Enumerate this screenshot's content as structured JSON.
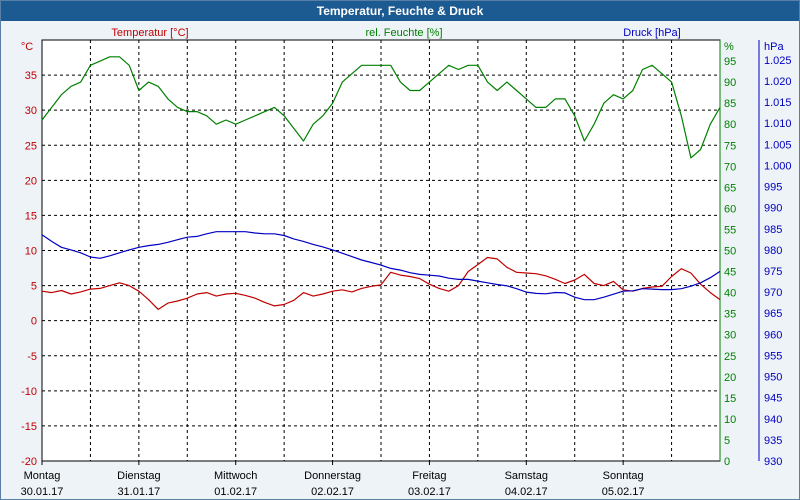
{
  "window": {
    "title": "Temperatur, Feuchte & Druck"
  },
  "chart_data": {
    "type": "line",
    "axes": {
      "temperature": {
        "label": "Temperatur [°C]",
        "unit": "°C",
        "ylim": [
          -20,
          40
        ],
        "ticks": [
          -20,
          -15,
          -10,
          -5,
          0,
          5,
          10,
          15,
          20,
          25,
          30,
          35
        ],
        "color": "#c00000"
      },
      "humidity": {
        "label": "rel. Feuchte [%]",
        "unit": "%",
        "ylim": [
          0,
          100
        ],
        "ticks": [
          0,
          5,
          10,
          15,
          20,
          25,
          30,
          35,
          40,
          45,
          50,
          55,
          60,
          65,
          70,
          75,
          80,
          85,
          90,
          95
        ],
        "color": "#008000"
      },
      "pressure": {
        "label": "Druck [hPa]",
        "unit": "hPa",
        "ylim": [
          930,
          1029.7
        ],
        "ticks": [
          "930",
          "935",
          "940",
          "945",
          "950",
          "955",
          "960",
          "965",
          "970",
          "975",
          "980",
          "985",
          "990",
          "995",
          "1.000",
          "1.005",
          "1.010",
          "1.015",
          "1.020",
          "1.025"
        ],
        "color": "#0000c0"
      }
    },
    "x_labels": [
      {
        "day": "Montag",
        "date": "30.01.17"
      },
      {
        "day": "Dienstag",
        "date": "31.01.17"
      },
      {
        "day": "Mittwoch",
        "date": "01.02.17"
      },
      {
        "day": "Donnerstag",
        "date": "02.02.17"
      },
      {
        "day": "Freitag",
        "date": "03.02.17"
      },
      {
        "day": "Samstag",
        "date": "04.02.17"
      },
      {
        "day": "Sonntag",
        "date": "05.02.17"
      }
    ],
    "x_range_days": [
      0,
      7
    ],
    "grid": true,
    "series": [
      {
        "name": "Temperatur [°C]",
        "axis": "temperature",
        "color": "#c00000",
        "x": [
          0,
          0.1,
          0.2,
          0.3,
          0.4,
          0.5,
          0.6,
          0.7,
          0.8,
          0.9,
          1.0,
          1.1,
          1.2,
          1.3,
          1.4,
          1.5,
          1.6,
          1.7,
          1.8,
          1.9,
          2.0,
          2.1,
          2.2,
          2.3,
          2.4,
          2.5,
          2.6,
          2.7,
          2.8,
          2.9,
          3.0,
          3.1,
          3.2,
          3.3,
          3.4,
          3.5,
          3.6,
          3.7,
          3.8,
          3.9,
          4.0,
          4.1,
          4.2,
          4.3,
          4.4,
          4.5,
          4.6,
          4.7,
          4.8,
          4.9,
          5.0,
          5.1,
          5.2,
          5.3,
          5.4,
          5.5,
          5.6,
          5.7,
          5.8,
          5.9,
          6.0,
          6.1,
          6.2,
          6.3,
          6.4,
          6.5,
          6.6,
          6.7,
          6.8,
          6.9,
          7.0
        ],
        "values": [
          4.2,
          4.0,
          4.3,
          3.8,
          4.1,
          4.5,
          4.6,
          5.0,
          5.4,
          5.0,
          4.2,
          3.0,
          1.6,
          2.5,
          2.8,
          3.2,
          3.8,
          4.0,
          3.5,
          3.8,
          3.9,
          3.6,
          3.2,
          2.6,
          2.1,
          2.3,
          2.9,
          4.0,
          3.5,
          3.8,
          4.2,
          4.4,
          4.1,
          4.6,
          4.9,
          5.1,
          6.9,
          6.5,
          6.3,
          6.0,
          5.2,
          4.6,
          4.2,
          5.0,
          7.0,
          8.0,
          9.0,
          8.8,
          7.6,
          6.9,
          6.8,
          6.7,
          6.4,
          5.9,
          5.3,
          5.8,
          6.6,
          5.3,
          5.0,
          5.6,
          4.4,
          4.2,
          4.6,
          4.8,
          4.9,
          6.3,
          7.4,
          6.8,
          5.2,
          4.0,
          3.0
        ]
      },
      {
        "name": "rel. Feuchte [%]",
        "axis": "humidity",
        "color": "#008000",
        "x": [
          0,
          0.1,
          0.2,
          0.3,
          0.4,
          0.5,
          0.6,
          0.7,
          0.8,
          0.9,
          1.0,
          1.1,
          1.2,
          1.3,
          1.4,
          1.5,
          1.6,
          1.7,
          1.8,
          1.9,
          2.0,
          2.1,
          2.2,
          2.3,
          2.4,
          2.5,
          2.6,
          2.7,
          2.8,
          2.9,
          3.0,
          3.1,
          3.2,
          3.3,
          3.4,
          3.5,
          3.6,
          3.7,
          3.8,
          3.9,
          4.0,
          4.1,
          4.2,
          4.3,
          4.4,
          4.5,
          4.6,
          4.7,
          4.8,
          4.9,
          5.0,
          5.1,
          5.2,
          5.3,
          5.4,
          5.5,
          5.6,
          5.7,
          5.8,
          5.9,
          6.0,
          6.1,
          6.2,
          6.3,
          6.4,
          6.5,
          6.6,
          6.7,
          6.8,
          6.9,
          7.0
        ],
        "values": [
          81,
          84,
          87,
          89,
          90,
          94,
          95,
          96,
          96,
          94,
          88,
          90,
          89,
          86,
          84,
          83,
          83,
          82,
          80,
          81,
          80,
          81,
          82,
          83,
          84,
          82,
          79,
          76,
          80,
          82,
          85,
          90,
          92,
          94,
          94,
          94,
          94,
          90,
          88,
          88,
          90,
          92,
          94,
          93,
          94,
          94,
          90,
          88,
          90,
          88,
          86,
          84,
          84,
          86,
          86,
          82,
          76,
          80,
          85,
          87,
          86,
          88,
          93,
          94,
          92,
          90,
          82,
          72,
          74,
          80,
          84
        ]
      },
      {
        "name": "Druck [hPa]",
        "axis": "pressure",
        "color": "#0000c0",
        "x": [
          0,
          0.1,
          0.2,
          0.3,
          0.4,
          0.5,
          0.6,
          0.7,
          0.8,
          0.9,
          1.0,
          1.1,
          1.2,
          1.3,
          1.4,
          1.5,
          1.6,
          1.7,
          1.8,
          1.9,
          2.0,
          2.1,
          2.2,
          2.3,
          2.4,
          2.5,
          2.6,
          2.7,
          2.8,
          2.9,
          3.0,
          3.1,
          3.2,
          3.3,
          3.4,
          3.5,
          3.6,
          3.7,
          3.8,
          3.9,
          4.0,
          4.1,
          4.2,
          4.3,
          4.4,
          4.5,
          4.6,
          4.7,
          4.8,
          4.9,
          5.0,
          5.1,
          5.2,
          5.3,
          5.4,
          5.5,
          5.6,
          5.7,
          5.8,
          5.9,
          6.0,
          6.1,
          6.2,
          6.3,
          6.4,
          6.5,
          6.6,
          6.7,
          6.8,
          6.9,
          7.0
        ],
        "values": [
          983.6,
          982.0,
          980.6,
          980.0,
          979.3,
          978.3,
          978.0,
          978.6,
          979.3,
          980.0,
          980.6,
          981.0,
          981.3,
          981.8,
          982.4,
          983.0,
          983.2,
          983.8,
          984.3,
          984.3,
          984.3,
          984.3,
          984.0,
          983.8,
          983.8,
          983.4,
          982.6,
          982.0,
          981.3,
          980.7,
          980.0,
          979.2,
          978.4,
          977.6,
          977.0,
          976.4,
          975.6,
          975.2,
          974.6,
          974.2,
          974.0,
          973.8,
          973.3,
          973.0,
          973.0,
          972.6,
          972.2,
          971.8,
          971.5,
          970.8,
          970.0,
          969.7,
          969.6,
          969.9,
          969.8,
          968.8,
          968.2,
          968.2,
          968.8,
          969.5,
          970.2,
          970.3,
          970.8,
          970.7,
          970.6,
          970.6,
          970.8,
          971.4,
          972.2,
          973.4,
          974.9
        ]
      }
    ]
  }
}
